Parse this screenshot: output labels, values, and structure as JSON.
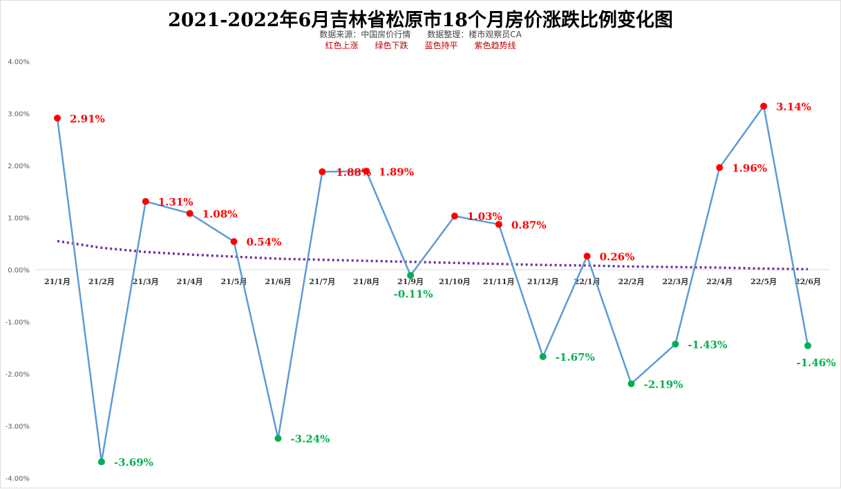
{
  "title": "2021-2022年6月吉林省松原市18个月房价涨跌比例变化图",
  "subtitle": {
    "source": "数据来源：中国房价行情",
    "compiler": "数据整理：楼市观察员CA"
  },
  "legend": {
    "red": "红色上涨",
    "green": "绿色下跌",
    "blue": "蓝色持平",
    "purple": "紫色趋势线"
  },
  "colors": {
    "line": "#5b9bd5",
    "up": "#ff0000",
    "down": "#00b050",
    "trend": "#7030a0",
    "up_label": "#ff0000",
    "down_label": "#00b050"
  },
  "chart_data": {
    "type": "line",
    "title": "2021-2022年6月吉林省松原市18个月房价涨跌比例变化图",
    "categories": [
      "21/1月",
      "21/2月",
      "21/3月",
      "21/4月",
      "21/5月",
      "21/6月",
      "21/7月",
      "21/8月",
      "21/9月",
      "21/10月",
      "21/11月",
      "21/12月",
      "22/1月",
      "22/2月",
      "22/3月",
      "22/4月",
      "22/5月",
      "22/6月"
    ],
    "values": [
      2.91,
      -3.69,
      1.31,
      1.08,
      0.54,
      -3.24,
      1.88,
      1.89,
      -0.11,
      1.03,
      0.87,
      -1.67,
      0.26,
      -2.19,
      -1.43,
      1.96,
      3.14,
      -1.46
    ],
    "labels": [
      "2.91%",
      "-3.69%",
      "1.31%",
      "1.08%",
      "0.54%",
      "-3.24%",
      "1.88%",
      "1.89%",
      "-0.11%",
      "1.03%",
      "0.87%",
      "-1.67%",
      "0.26%",
      "-2.19%",
      "-1.43%",
      "1.96%",
      "3.14%",
      "-1.46%"
    ],
    "trend": [
      0.55,
      0.42,
      0.34,
      0.29,
      0.25,
      0.21,
      0.19,
      0.17,
      0.15,
      0.13,
      0.11,
      0.09,
      0.08,
      0.06,
      0.05,
      0.04,
      0.02,
      0.01
    ],
    "ylim": [
      -4,
      4
    ],
    "yticks": [
      "4.00%",
      "3.00%",
      "2.00%",
      "1.00%",
      "0.00%",
      "-1.00%",
      "-2.00%",
      "-3.00%",
      "-4.00%"
    ],
    "ytick_values": [
      4,
      3,
      2,
      1,
      0,
      -1,
      -2,
      -3,
      -4
    ],
    "grid": false,
    "xlabel": "",
    "ylabel": ""
  }
}
